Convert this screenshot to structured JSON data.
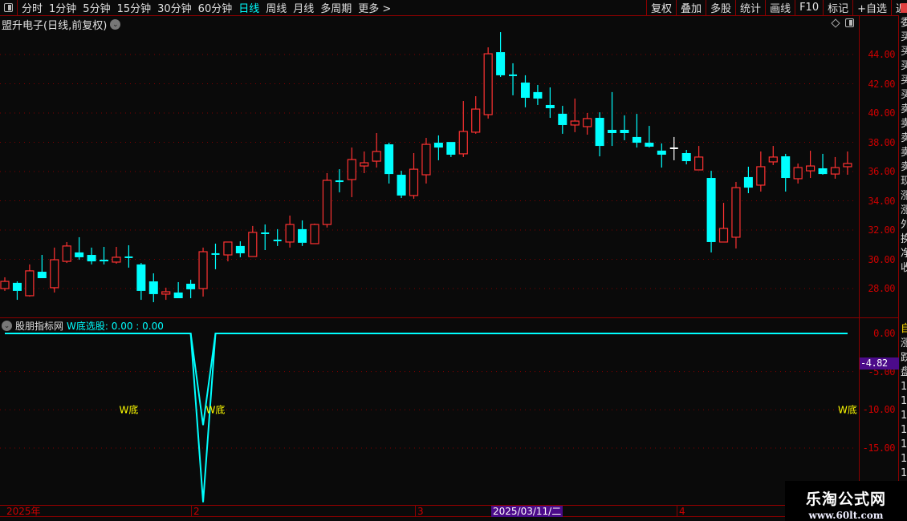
{
  "toolbar": {
    "periods": [
      "分时",
      "1分钟",
      "5分钟",
      "15分钟",
      "30分钟",
      "60分钟",
      "日线",
      "周线",
      "月线",
      "多周期",
      "更多 >"
    ],
    "active_period": "日线",
    "buttons": [
      "复权",
      "叠加",
      "多股",
      "统计",
      "画线",
      "F10",
      "标记",
      "+自选",
      "返回"
    ]
  },
  "chart_title": "盟升电子(日线,前复权)",
  "colors": {
    "up": "#ff3232",
    "down": "#00ffff",
    "doji_flat": "#ffffff",
    "grid": "#800000",
    "axis_text": "#cc0000",
    "highlight": "#4b0b8a",
    "signal_text": "#ffff00"
  },
  "price_axis": {
    "labels": [
      "44.00",
      "42.00",
      "40.00",
      "38.00",
      "36.00",
      "34.00",
      "32.00",
      "30.00",
      "28.00"
    ]
  },
  "indicator": {
    "name": "股朋指标网",
    "formula": "W底选股",
    "values_text": ": 0.00 : 0.00",
    "axis_labels": [
      "0.00",
      "-5.00",
      "-10.00",
      "-15.00"
    ],
    "readout": "-4.82",
    "signal_label": "W底"
  },
  "date_axis": {
    "labels": [
      "2025年",
      "2",
      "3",
      "4"
    ],
    "selected": "2025/03/11/二"
  },
  "right_strip": {
    "top": [
      "委",
      "买",
      "买",
      "买",
      "买",
      "买",
      "卖",
      "卖",
      "卖",
      "卖",
      "卖",
      "现",
      "涨",
      "涨",
      "外",
      "换",
      "净",
      "收"
    ],
    "bottom": [
      "自",
      "涨",
      "跌",
      "盘",
      "1",
      "1",
      "1",
      "1",
      "1",
      "1",
      "1"
    ]
  },
  "watermark": {
    "name": "乐淘公式网",
    "url": "www.60lt.com"
  },
  "chart_data": [
    {
      "type": "candlestick",
      "title": "盟升电子(日线,前复权)",
      "ylim": [
        27,
        46
      ],
      "grid": true,
      "ohlc_format": "open,high,low,close",
      "candles": [
        [
          28.0,
          28.77,
          27.84,
          28.49
        ],
        [
          28.39,
          28.49,
          27.23,
          27.84
        ],
        [
          27.51,
          29.65,
          27.45,
          29.21
        ],
        [
          29.15,
          30.3,
          28.71,
          28.71
        ],
        [
          28.06,
          30.8,
          27.73,
          29.97
        ],
        [
          29.86,
          31.18,
          29.75,
          30.91
        ],
        [
          30.47,
          31.51,
          29.97,
          30.14
        ],
        [
          30.3,
          30.8,
          29.65,
          29.86
        ],
        [
          29.97,
          30.85,
          29.65,
          29.86
        ],
        [
          29.81,
          30.85,
          29.7,
          30.14
        ],
        [
          30.14,
          30.96,
          29.43,
          30.14
        ],
        [
          29.65,
          29.75,
          27.23,
          27.84
        ],
        [
          28.49,
          29.04,
          27.07,
          27.62
        ],
        [
          27.62,
          28.06,
          27.23,
          27.78
        ],
        [
          27.73,
          28.44,
          27.34,
          27.34
        ],
        [
          28.33,
          28.6,
          27.34,
          27.95
        ],
        [
          28.0,
          30.8,
          27.45,
          30.52
        ],
        [
          30.36,
          31.07,
          29.32,
          30.36
        ],
        [
          30.3,
          31.18,
          29.86,
          31.18
        ],
        [
          30.91,
          31.23,
          30.14,
          30.41
        ],
        [
          30.19,
          32.28,
          30.19,
          31.84
        ],
        [
          31.78,
          32.38,
          30.63,
          31.78
        ],
        [
          31.29,
          32.06,
          30.91,
          31.29
        ],
        [
          31.18,
          32.99,
          30.8,
          32.38
        ],
        [
          32.06,
          32.66,
          30.91,
          31.13
        ],
        [
          31.07,
          32.44,
          31.07,
          32.38
        ],
        [
          32.38,
          35.89,
          32.17,
          35.4
        ],
        [
          35.34,
          36.16,
          34.58,
          35.34
        ],
        [
          35.45,
          37.64,
          34.25,
          36.82
        ],
        [
          36.38,
          37.37,
          35.89,
          36.6
        ],
        [
          36.71,
          38.63,
          36.27,
          37.37
        ],
        [
          37.86,
          37.97,
          35.18,
          35.83
        ],
        [
          35.78,
          36.05,
          34.19,
          34.36
        ],
        [
          34.36,
          37.26,
          34.14,
          36.16
        ],
        [
          35.78,
          38.3,
          35.18,
          37.86
        ],
        [
          37.97,
          38.47,
          36.77,
          37.64
        ],
        [
          38.02,
          38.02,
          36.99,
          37.15
        ],
        [
          37.21,
          40.82,
          36.99,
          38.74
        ],
        [
          38.69,
          41.15,
          38.58,
          40.27
        ],
        [
          39.89,
          44.49,
          39.62,
          44.05
        ],
        [
          44.16,
          45.53,
          42.47,
          42.58
        ],
        [
          42.58,
          43.4,
          41.21,
          42.58
        ],
        [
          42.08,
          42.58,
          40.39,
          41.04
        ],
        [
          41.43,
          41.92,
          40.55,
          40.99
        ],
        [
          40.55,
          41.75,
          39.67,
          40.33
        ],
        [
          39.95,
          40.49,
          38.58,
          39.18
        ],
        [
          39.18,
          40.99,
          38.69,
          39.45
        ],
        [
          39.07,
          40.0,
          38.52,
          39.62
        ],
        [
          39.67,
          40.05,
          37.04,
          37.75
        ],
        [
          38.85,
          41.43,
          37.75,
          38.63
        ],
        [
          38.85,
          39.84,
          38.14,
          38.63
        ],
        [
          38.36,
          39.94,
          37.64,
          37.97
        ],
        [
          37.97,
          39.12,
          37.64,
          37.7
        ],
        [
          37.43,
          37.92,
          36.27,
          37.15
        ],
        [
          37.59,
          38.36,
          36.77,
          37.59,
          "flat"
        ],
        [
          37.26,
          37.48,
          36.49,
          36.71
        ],
        [
          36.11,
          37.75,
          36.11,
          36.99
        ],
        [
          35.56,
          36.05,
          30.47,
          31.18
        ],
        [
          31.18,
          33.86,
          31.18,
          32.11
        ],
        [
          31.51,
          35.29,
          30.74,
          34.9
        ],
        [
          35.62,
          36.33,
          34.52,
          34.9
        ],
        [
          35.07,
          37.37,
          34.63,
          36.33
        ],
        [
          36.66,
          37.75,
          36.44,
          36.99
        ],
        [
          37.04,
          37.21,
          34.63,
          35.56
        ],
        [
          35.51,
          36.55,
          35.18,
          36.27
        ],
        [
          36.05,
          37.42,
          35.56,
          36.38
        ],
        [
          36.22,
          37.21,
          35.78,
          35.83
        ],
        [
          35.83,
          36.99,
          35.51,
          36.27
        ],
        [
          36.33,
          37.37,
          35.78,
          36.55
        ]
      ]
    },
    {
      "type": "line",
      "title": "W底选股",
      "ylim": [
        -22.5,
        2
      ],
      "grid": true,
      "series": [
        {
          "values": [
            0,
            0,
            0,
            0,
            0,
            0,
            0,
            0,
            0,
            0,
            0,
            0,
            0,
            0,
            0,
            0,
            -12.0,
            0,
            0,
            0,
            0,
            0,
            0,
            0,
            0,
            0,
            0,
            0,
            0,
            0,
            0,
            0,
            0,
            0,
            0,
            0,
            0,
            0,
            0,
            0,
            0,
            0,
            0,
            0,
            0,
            0,
            0,
            0,
            0,
            0,
            0,
            0,
            0,
            0,
            0,
            0,
            0,
            0,
            0,
            0,
            0,
            0,
            0,
            0,
            0,
            0,
            0,
            0,
            0
          ]
        },
        {
          "values": [
            0,
            0,
            0,
            0,
            0,
            0,
            0,
            0,
            0,
            0,
            0,
            0,
            0,
            0,
            0,
            0,
            -22.1,
            0,
            0,
            0,
            0,
            0,
            0,
            0,
            0,
            0,
            0,
            0,
            0,
            0,
            0,
            0,
            0,
            0,
            0,
            0,
            0,
            0,
            0,
            0,
            0,
            0,
            0,
            0,
            0,
            0,
            0,
            0,
            0,
            0,
            0,
            0,
            0,
            0,
            0,
            0,
            0,
            0,
            0,
            0,
            0,
            0,
            0,
            0,
            0,
            0,
            0,
            0,
            0
          ]
        }
      ],
      "signals": [
        {
          "index": 10,
          "value": -10,
          "text": "W底"
        },
        {
          "index": 17,
          "value": -10,
          "text": "W底"
        },
        {
          "index": 68,
          "value": -10,
          "text": "W底"
        }
      ]
    }
  ]
}
